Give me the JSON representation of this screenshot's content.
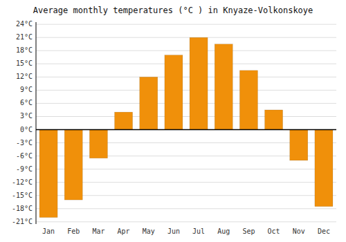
{
  "chart_data": {
    "type": "bar",
    "title": "Average monthly temperatures (°C ) in Knyaze-Volkonskoye",
    "categories": [
      "Jan",
      "Feb",
      "Mar",
      "Apr",
      "May",
      "Jun",
      "Jul",
      "Aug",
      "Sep",
      "Oct",
      "Nov",
      "Dec"
    ],
    "values": [
      -20,
      -16,
      -6.5,
      4,
      12,
      17,
      21,
      19.5,
      13.5,
      4.5,
      -7,
      -17.5
    ],
    "color": "#F0900A",
    "ylim": [
      -21.5,
      24.5
    ],
    "yticks": [
      {
        "value": -21,
        "label": "-21°C"
      },
      {
        "value": -18,
        "label": "-18°C"
      },
      {
        "value": -15,
        "label": "-15°C"
      },
      {
        "value": -12,
        "label": "-12°C"
      },
      {
        "value": -9,
        "label": "-9°C"
      },
      {
        "value": -6,
        "label": "-6°C"
      },
      {
        "value": -3,
        "label": "-3°C"
      },
      {
        "value": 0,
        "label": "0°C"
      },
      {
        "value": 3,
        "label": "3°C"
      },
      {
        "value": 6,
        "label": "6°C"
      },
      {
        "value": 9,
        "label": "9°C"
      },
      {
        "value": 12,
        "label": "12°C"
      },
      {
        "value": 15,
        "label": "15°C"
      },
      {
        "value": 18,
        "label": "18°C"
      },
      {
        "value": 21,
        "label": "21°C"
      },
      {
        "value": 24,
        "label": "24°C"
      }
    ],
    "grid": true
  }
}
